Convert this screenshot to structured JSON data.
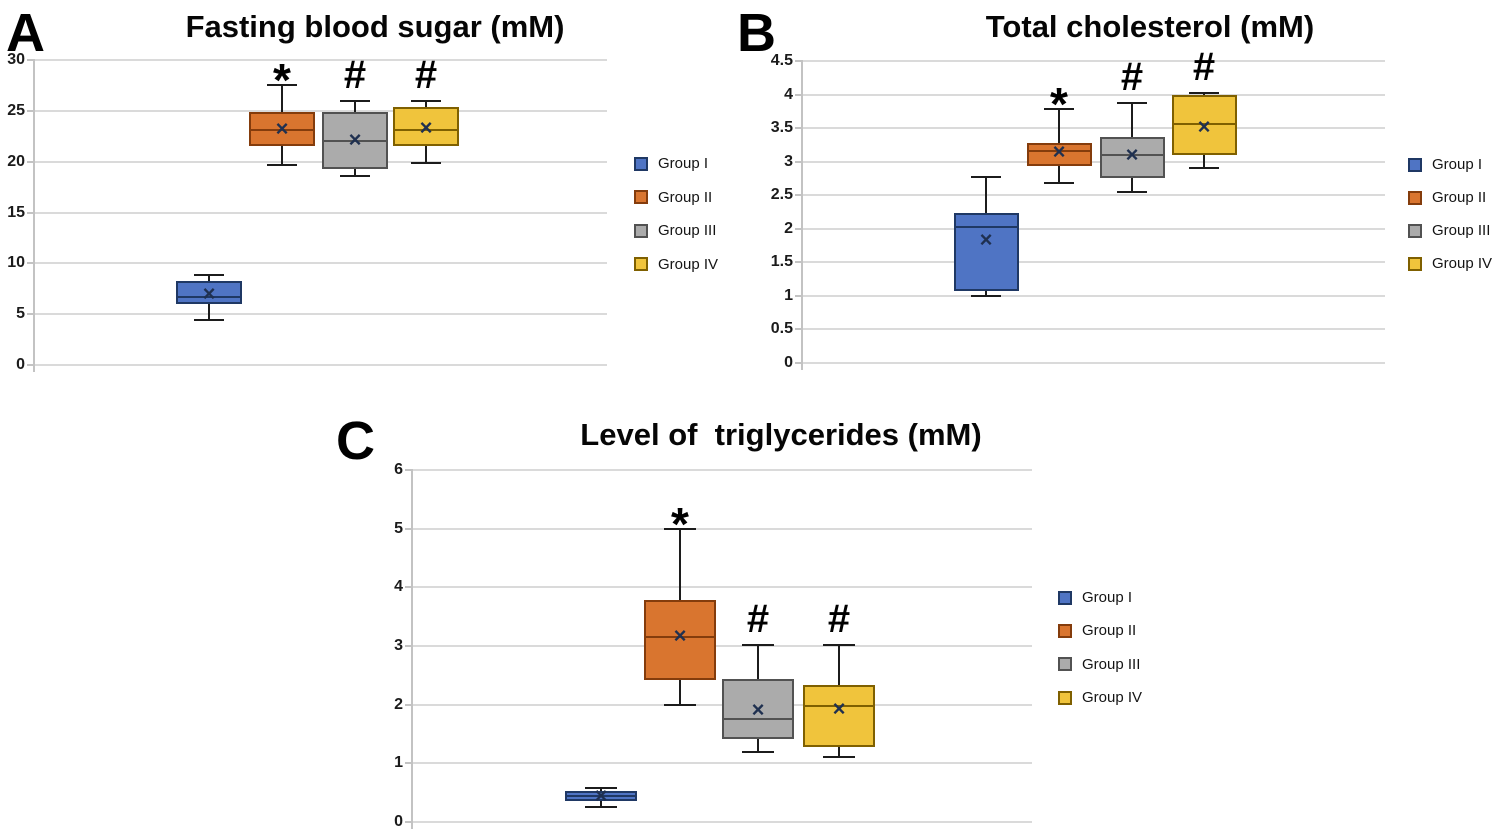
{
  "groups": {
    "labels": [
      "Group I",
      "Group II",
      "Group III",
      "Group IV"
    ],
    "fill_colors": [
      "#4F74C4",
      "#D9752F",
      "#ABABAB",
      "#F0C43C"
    ],
    "border_colors": [
      "#1F3864",
      "#843C0C",
      "#525252",
      "#7F6000"
    ]
  },
  "annotation_symbols": {
    "significant_vs_control": "*",
    "significant_vs_diabetic": "#"
  },
  "chart_data": [
    {
      "type": "box",
      "panel_label": "A",
      "title": "Fasting blood sugar (mM)",
      "ylim": [
        0,
        30
      ],
      "yticks": [
        "30",
        "25",
        "20",
        "15",
        "10",
        "5",
        "0"
      ],
      "grid": true,
      "legend_position": "right",
      "legend": [
        "Group I",
        "Group II",
        "Group III",
        "Group IV"
      ],
      "series": [
        {
          "name": "Group I",
          "whisker_low": 4.4,
          "q1": 6.0,
          "median": 6.7,
          "q3": 8.3,
          "whisker_high": 8.9,
          "mean": 7.0,
          "annotation": ""
        },
        {
          "name": "Group II",
          "whisker_low": 19.7,
          "q1": 21.5,
          "median": 23.1,
          "q3": 24.9,
          "whisker_high": 27.5,
          "mean": 23.2,
          "annotation": "*"
        },
        {
          "name": "Group III",
          "whisker_low": 18.6,
          "q1": 19.3,
          "median": 22.0,
          "q3": 24.9,
          "whisker_high": 26.0,
          "mean": 22.1,
          "annotation": "#"
        },
        {
          "name": "Group IV",
          "whisker_low": 19.9,
          "q1": 21.5,
          "median": 23.1,
          "q3": 25.4,
          "whisker_high": 26.0,
          "mean": 23.3,
          "annotation": "#"
        }
      ]
    },
    {
      "type": "box",
      "panel_label": "B",
      "title": "Total cholesterol (mM)",
      "ylim": [
        0,
        4.5
      ],
      "yticks": [
        "4.5",
        "4",
        "3.5",
        "3",
        "2.5",
        "2",
        "1.5",
        "1",
        "0.5",
        "0"
      ],
      "grid": true,
      "legend_position": "right",
      "legend": [
        "Group I",
        "Group II",
        "Group III",
        "Group IV"
      ],
      "series": [
        {
          "name": "Group I",
          "whisker_low": 1.0,
          "q1": 1.08,
          "median": 2.03,
          "q3": 2.23,
          "whisker_high": 2.77,
          "mean": 1.84,
          "annotation": ""
        },
        {
          "name": "Group II",
          "whisker_low": 2.68,
          "q1": 2.94,
          "median": 3.16,
          "q3": 3.28,
          "whisker_high": 3.79,
          "mean": 3.15,
          "annotation": "*"
        },
        {
          "name": "Group III",
          "whisker_low": 2.55,
          "q1": 2.76,
          "median": 3.1,
          "q3": 3.37,
          "whisker_high": 3.87,
          "mean": 3.1,
          "annotation": "#"
        },
        {
          "name": "Group IV",
          "whisker_low": 2.9,
          "q1": 3.1,
          "median": 3.56,
          "q3": 3.99,
          "whisker_high": 4.03,
          "mean": 3.52,
          "annotation": "#"
        }
      ]
    },
    {
      "type": "box",
      "panel_label": "C",
      "title": "Level of  triglycerides (mM)",
      "ylim": [
        0,
        6
      ],
      "yticks": [
        "6",
        "5",
        "4",
        "3",
        "2",
        "1",
        "0"
      ],
      "grid": true,
      "legend_position": "right",
      "legend": [
        "Group I",
        "Group II",
        "Group III",
        "Group IV"
      ],
      "series": [
        {
          "name": "Group I",
          "whisker_low": 0.25,
          "q1": 0.35,
          "median": 0.44,
          "q3": 0.52,
          "whisker_high": 0.58,
          "mean": 0.44,
          "annotation": ""
        },
        {
          "name": "Group II",
          "whisker_low": 1.99,
          "q1": 2.42,
          "median": 3.16,
          "q3": 3.78,
          "whisker_high": 5.0,
          "mean": 3.17,
          "annotation": "*"
        },
        {
          "name": "Group III",
          "whisker_low": 1.2,
          "q1": 1.42,
          "median": 1.75,
          "q3": 2.43,
          "whisker_high": 3.02,
          "mean": 1.91,
          "annotation": "#"
        },
        {
          "name": "Group IV",
          "whisker_low": 1.11,
          "q1": 1.28,
          "median": 1.98,
          "q3": 2.33,
          "whisker_high": 3.02,
          "mean": 1.93,
          "annotation": "#"
        }
      ]
    }
  ]
}
